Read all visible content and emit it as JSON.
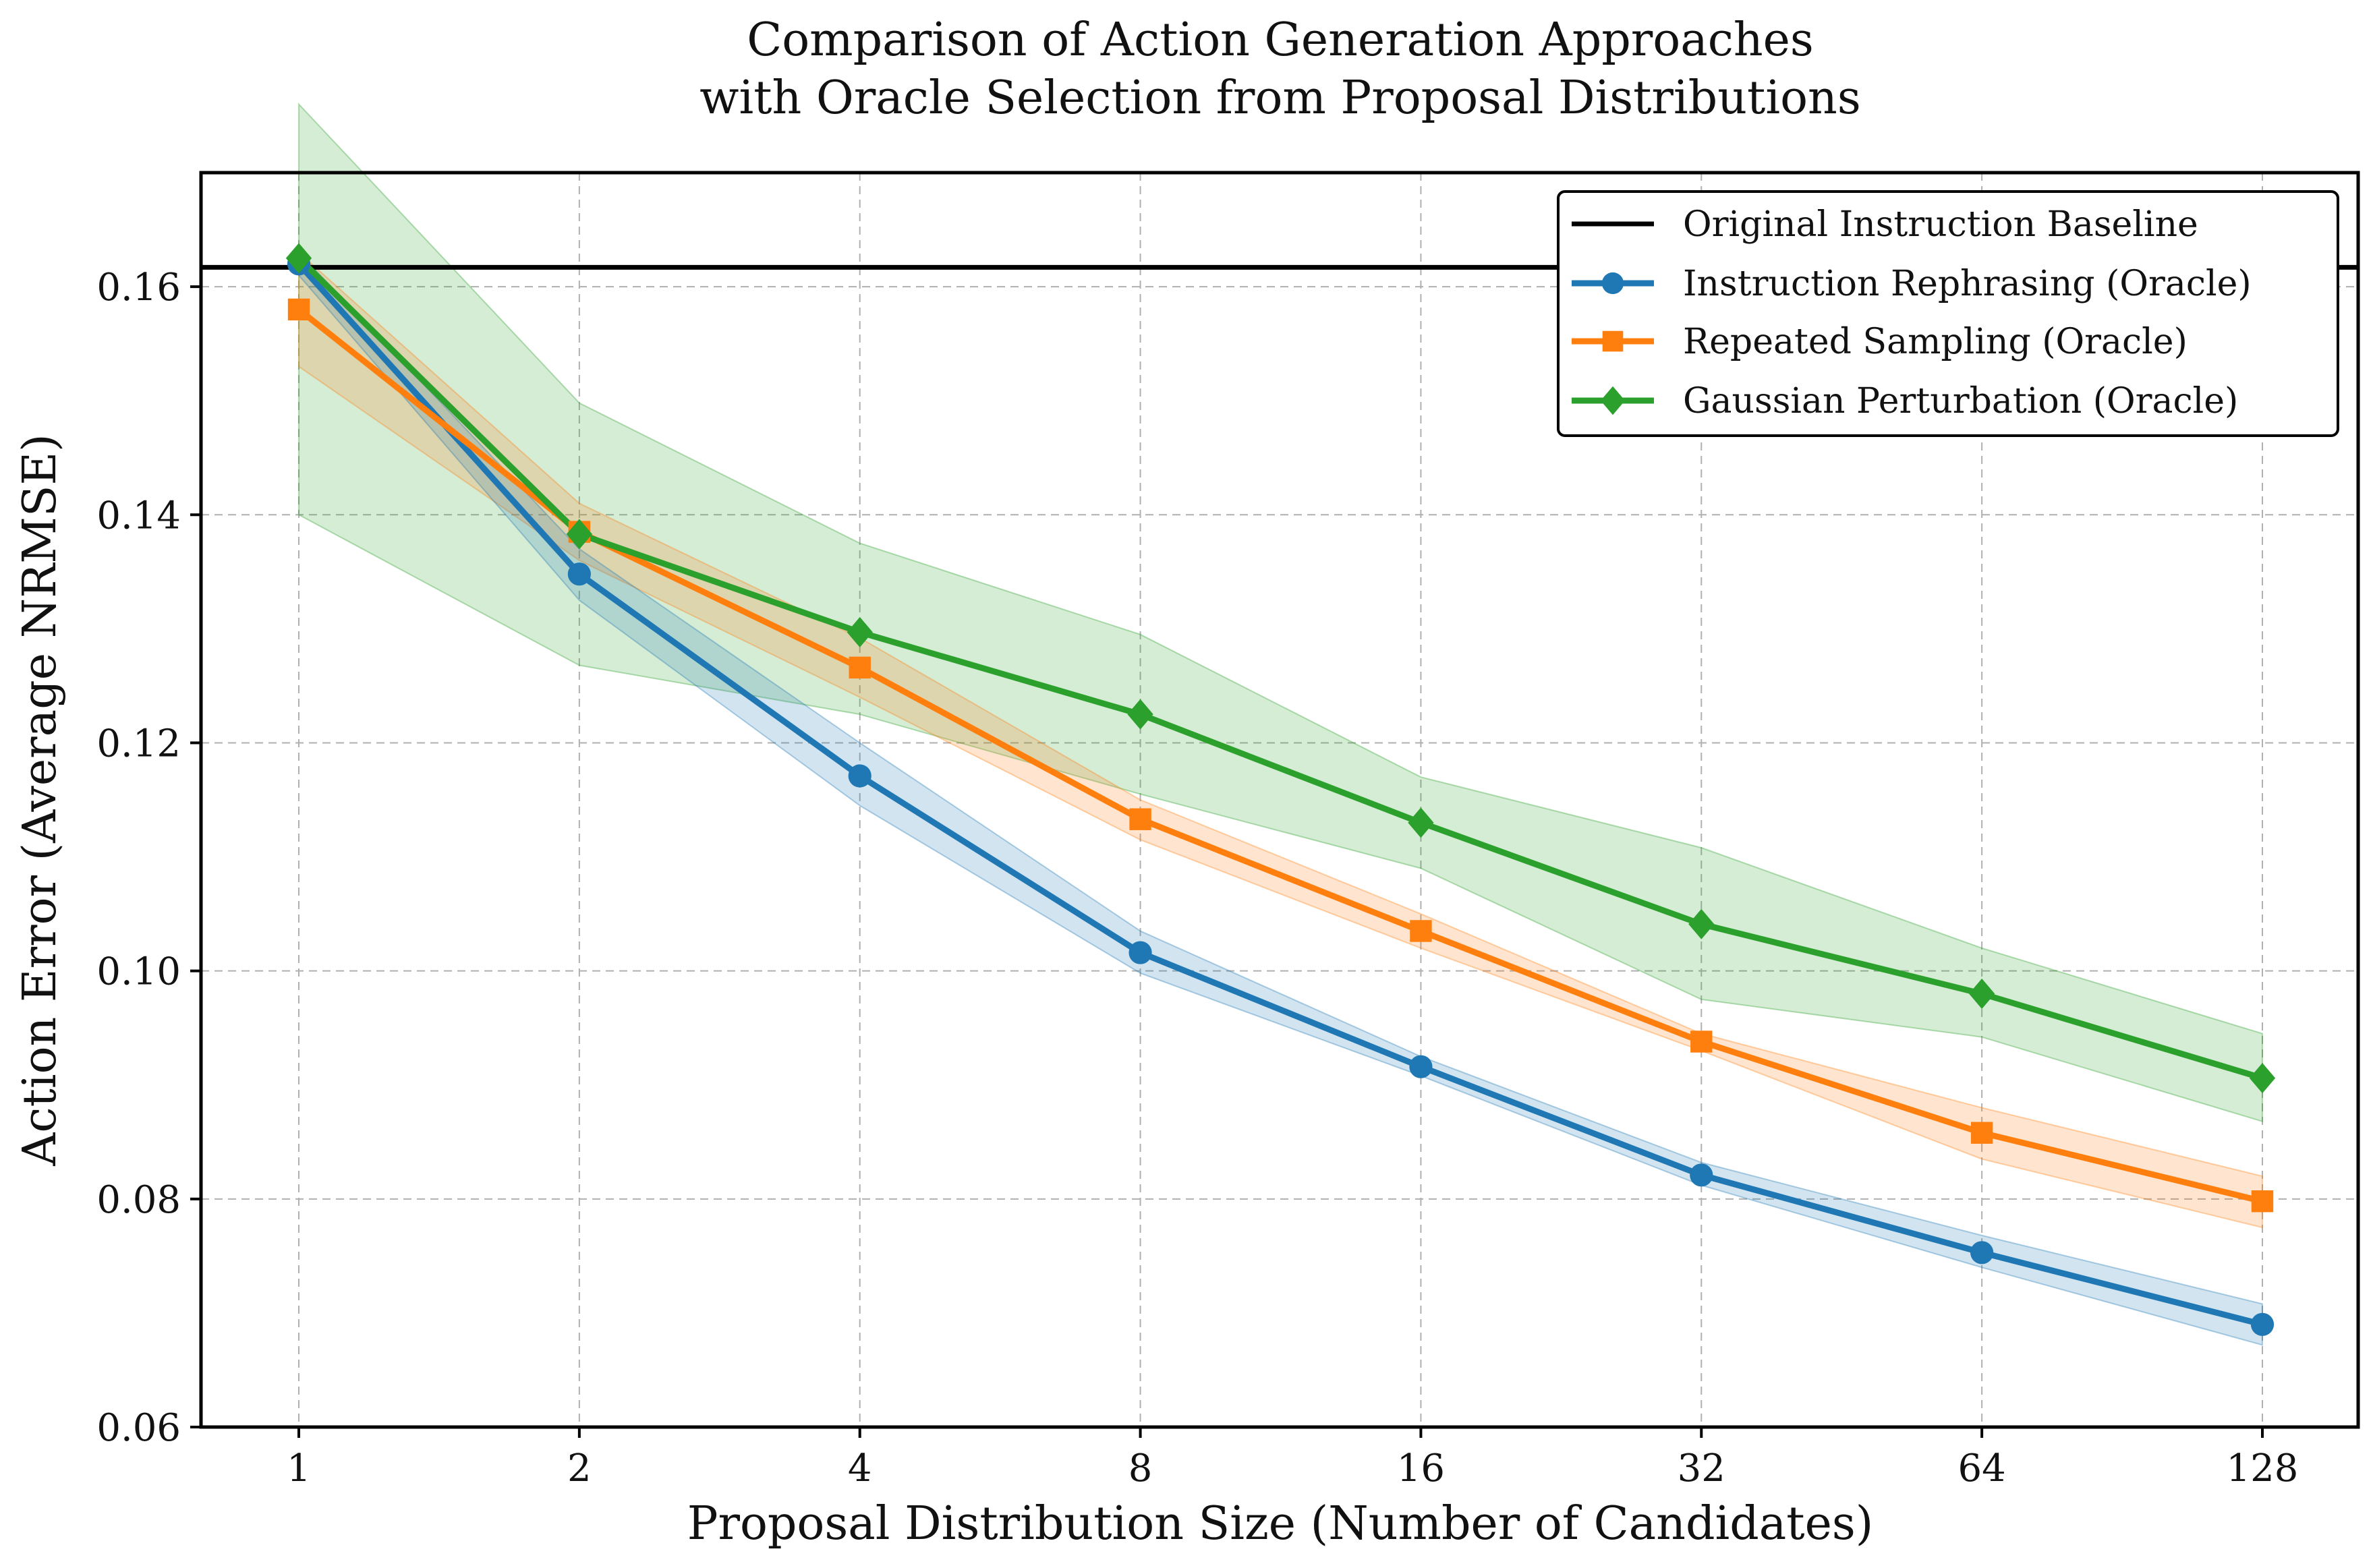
{
  "chart_data": {
    "type": "line",
    "title": [
      "Comparison of Action Generation Approaches",
      "with Oracle Selection from Proposal Distributions"
    ],
    "xlabel": "Proposal Distribution Size (Number of Candidates)",
    "ylabel": "Action Error (Average NRMSE)",
    "x_scale": "log2",
    "x": [
      1,
      2,
      4,
      8,
      16,
      32,
      64,
      128
    ],
    "x_tick_labels": [
      "1",
      "2",
      "4",
      "8",
      "16",
      "32",
      "64",
      "128"
    ],
    "ylim": [
      0.06,
      0.17
    ],
    "y_ticks": [
      0.06,
      0.08,
      0.1,
      0.12,
      0.14,
      0.16
    ],
    "y_tick_labels": [
      "0.06",
      "0.08",
      "0.10",
      "0.12",
      "0.14",
      "0.16"
    ],
    "grid": true,
    "legend_position": "top-right",
    "baseline": {
      "name": "Original Instruction Baseline",
      "value": 0.1617,
      "color": "#000000"
    },
    "series": [
      {
        "name": "Instruction Rephrasing (Oracle)",
        "color": "#1f77b4",
        "marker": "circle",
        "values": [
          0.162,
          0.1348,
          0.1171,
          0.1016,
          0.0916,
          0.0821,
          0.0753,
          0.069
        ],
        "lower": [
          0.161,
          0.1325,
          0.1145,
          0.0998,
          0.0908,
          0.0812,
          0.074,
          0.0672
        ],
        "upper": [
          0.163,
          0.137,
          0.12,
          0.1035,
          0.0925,
          0.0832,
          0.0768,
          0.0708
        ]
      },
      {
        "name": "Repeated Sampling (Oracle)",
        "color": "#ff7f0e",
        "marker": "square",
        "values": [
          0.158,
          0.1385,
          0.1266,
          0.1133,
          0.1035,
          0.0938,
          0.0858,
          0.0798
        ],
        "lower": [
          0.153,
          0.136,
          0.124,
          0.1115,
          0.102,
          0.093,
          0.0835,
          0.0775
        ],
        "upper": [
          0.163,
          0.141,
          0.1292,
          0.115,
          0.105,
          0.0945,
          0.088,
          0.082
        ]
      },
      {
        "name": "Gaussian Perturbation (Oracle)",
        "color": "#2ca02c",
        "marker": "diamond",
        "values": [
          0.1625,
          0.1383,
          0.1297,
          0.1225,
          0.113,
          0.1041,
          0.098,
          0.0906
        ],
        "lower": [
          0.14,
          0.1268,
          0.1225,
          0.1155,
          0.109,
          0.0975,
          0.0942,
          0.0868
        ],
        "upper": [
          0.176,
          0.1498,
          0.1375,
          0.1295,
          0.117,
          0.1108,
          0.102,
          0.0945
        ]
      }
    ]
  }
}
